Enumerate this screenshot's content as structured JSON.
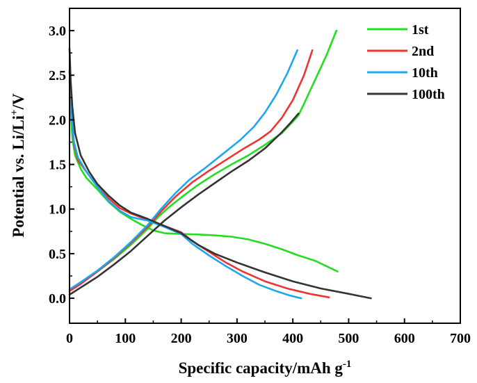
{
  "chart_data": {
    "type": "line",
    "title": "",
    "xlabel": "Specific capacity/mAh g",
    "xlabel_sup": "-1",
    "ylabel": "Potential vs. Li/Li",
    "ylabel_sup": "+",
    "ylabel_suffix": "/V",
    "xlim": [
      0,
      700
    ],
    "ylim": [
      -0.28,
      3.25
    ],
    "xticks": [
      0,
      100,
      200,
      300,
      400,
      500,
      600,
      700
    ],
    "xtick_labels": [
      "0",
      "100",
      "200",
      "300",
      "400",
      "500",
      "600",
      "700"
    ],
    "yticks": [
      0.0,
      0.5,
      1.0,
      1.5,
      2.0,
      2.5,
      3.0
    ],
    "ytick_labels": [
      "0.0",
      "0.5",
      "1.0",
      "1.5",
      "2.0",
      "2.5",
      "3.0"
    ],
    "grid": false,
    "legend_position": "top-right",
    "series": [
      {
        "name": "1st",
        "color": "#22dd22",
        "discharge": [
          [
            0,
            2.45
          ],
          [
            2,
            2.15
          ],
          [
            5,
            1.8
          ],
          [
            10,
            1.6
          ],
          [
            20,
            1.45
          ],
          [
            30,
            1.35
          ],
          [
            50,
            1.22
          ],
          [
            70,
            1.08
          ],
          [
            90,
            0.97
          ],
          [
            110,
            0.89
          ],
          [
            130,
            0.82
          ],
          [
            150,
            0.76
          ],
          [
            170,
            0.73
          ],
          [
            200,
            0.72
          ],
          [
            230,
            0.715
          ],
          [
            260,
            0.705
          ],
          [
            290,
            0.69
          ],
          [
            320,
            0.66
          ],
          [
            350,
            0.61
          ],
          [
            380,
            0.55
          ],
          [
            410,
            0.48
          ],
          [
            440,
            0.42
          ],
          [
            480,
            0.3
          ]
        ],
        "charge": [
          [
            0,
            0.08
          ],
          [
            20,
            0.17
          ],
          [
            50,
            0.3
          ],
          [
            80,
            0.44
          ],
          [
            110,
            0.6
          ],
          [
            140,
            0.78
          ],
          [
            160,
            0.92
          ],
          [
            180,
            1.03
          ],
          [
            200,
            1.13
          ],
          [
            230,
            1.27
          ],
          [
            260,
            1.39
          ],
          [
            290,
            1.5
          ],
          [
            320,
            1.6
          ],
          [
            350,
            1.72
          ],
          [
            380,
            1.85
          ],
          [
            400,
            1.98
          ],
          [
            410,
            2.05
          ],
          [
            420,
            2.18
          ],
          [
            440,
            2.45
          ],
          [
            460,
            2.72
          ],
          [
            478,
            3.0
          ]
        ]
      },
      {
        "name": "2nd",
        "color": "#ee3333",
        "discharge": [
          [
            0,
            2.55
          ],
          [
            3,
            2.1
          ],
          [
            8,
            1.72
          ],
          [
            15,
            1.55
          ],
          [
            30,
            1.42
          ],
          [
            50,
            1.25
          ],
          [
            70,
            1.12
          ],
          [
            90,
            1.01
          ],
          [
            110,
            0.95
          ],
          [
            140,
            0.88
          ],
          [
            170,
            0.81
          ],
          [
            200,
            0.74
          ],
          [
            220,
            0.64
          ],
          [
            250,
            0.52
          ],
          [
            280,
            0.4
          ],
          [
            310,
            0.3
          ],
          [
            350,
            0.19
          ],
          [
            390,
            0.11
          ],
          [
            430,
            0.05
          ],
          [
            465,
            0.01
          ]
        ],
        "charge": [
          [
            0,
            0.08
          ],
          [
            20,
            0.16
          ],
          [
            50,
            0.3
          ],
          [
            80,
            0.45
          ],
          [
            110,
            0.62
          ],
          [
            140,
            0.8
          ],
          [
            165,
            0.98
          ],
          [
            190,
            1.14
          ],
          [
            220,
            1.3
          ],
          [
            250,
            1.43
          ],
          [
            280,
            1.55
          ],
          [
            310,
            1.67
          ],
          [
            340,
            1.78
          ],
          [
            360,
            1.87
          ],
          [
            380,
            2.02
          ],
          [
            400,
            2.22
          ],
          [
            420,
            2.5
          ],
          [
            435,
            2.78
          ]
        ]
      },
      {
        "name": "10th",
        "color": "#1ea7ee",
        "discharge": [
          [
            0,
            2.55
          ],
          [
            3,
            2.1
          ],
          [
            8,
            1.75
          ],
          [
            15,
            1.58
          ],
          [
            30,
            1.42
          ],
          [
            50,
            1.25
          ],
          [
            70,
            1.09
          ],
          [
            90,
            0.98
          ],
          [
            110,
            0.91
          ],
          [
            140,
            0.87
          ],
          [
            170,
            0.8
          ],
          [
            200,
            0.72
          ],
          [
            220,
            0.61
          ],
          [
            250,
            0.48
          ],
          [
            280,
            0.36
          ],
          [
            310,
            0.25
          ],
          [
            340,
            0.15
          ],
          [
            370,
            0.08
          ],
          [
            395,
            0.03
          ],
          [
            415,
            0.0
          ]
        ],
        "charge": [
          [
            0,
            0.1
          ],
          [
            20,
            0.18
          ],
          [
            50,
            0.31
          ],
          [
            80,
            0.46
          ],
          [
            110,
            0.63
          ],
          [
            140,
            0.82
          ],
          [
            165,
            1.01
          ],
          [
            190,
            1.18
          ],
          [
            215,
            1.33
          ],
          [
            245,
            1.47
          ],
          [
            275,
            1.62
          ],
          [
            305,
            1.77
          ],
          [
            330,
            1.92
          ],
          [
            350,
            2.08
          ],
          [
            370,
            2.28
          ],
          [
            390,
            2.52
          ],
          [
            408,
            2.78
          ]
        ]
      },
      {
        "name": "100th",
        "color": "#333333",
        "discharge": [
          [
            0,
            2.8
          ],
          [
            2,
            2.45
          ],
          [
            5,
            2.15
          ],
          [
            10,
            1.85
          ],
          [
            20,
            1.6
          ],
          [
            35,
            1.42
          ],
          [
            50,
            1.28
          ],
          [
            70,
            1.15
          ],
          [
            90,
            1.04
          ],
          [
            110,
            0.96
          ],
          [
            140,
            0.89
          ],
          [
            170,
            0.81
          ],
          [
            200,
            0.73
          ],
          [
            230,
            0.6
          ],
          [
            260,
            0.5
          ],
          [
            300,
            0.4
          ],
          [
            350,
            0.29
          ],
          [
            400,
            0.19
          ],
          [
            450,
            0.11
          ],
          [
            500,
            0.05
          ],
          [
            540,
            0.0
          ]
        ],
        "charge": [
          [
            0,
            0.04
          ],
          [
            20,
            0.12
          ],
          [
            50,
            0.24
          ],
          [
            80,
            0.38
          ],
          [
            110,
            0.53
          ],
          [
            140,
            0.7
          ],
          [
            170,
            0.87
          ],
          [
            200,
            1.02
          ],
          [
            230,
            1.16
          ],
          [
            260,
            1.29
          ],
          [
            290,
            1.42
          ],
          [
            320,
            1.54
          ],
          [
            350,
            1.68
          ],
          [
            380,
            1.86
          ],
          [
            395,
            1.96
          ],
          [
            410,
            2.07
          ]
        ]
      }
    ]
  }
}
